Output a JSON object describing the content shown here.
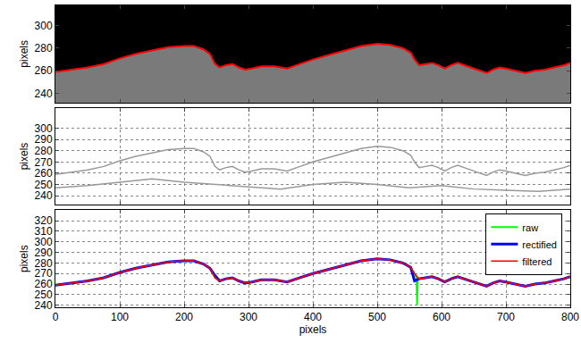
{
  "chart_data": [
    {
      "type": "line",
      "ylabel": "pixels",
      "xlim": [
        0,
        800
      ],
      "xticks": [
        0,
        100,
        200,
        300,
        400,
        500,
        600,
        700,
        800
      ],
      "ylim": [
        232,
        318
      ],
      "yticks": [
        240,
        260,
        280,
        300
      ],
      "grid": false,
      "tick_labels": "y",
      "series": [
        {
          "color": "#ff0000",
          "x": [
            0,
            25,
            50,
            75,
            100,
            125,
            150,
            175,
            200,
            215,
            230,
            240,
            248,
            255,
            265,
            275,
            285,
            295,
            305,
            320,
            340,
            360,
            380,
            400,
            425,
            450,
            475,
            500,
            520,
            540,
            552,
            558,
            565,
            575,
            585,
            595,
            605,
            615,
            625,
            640,
            650,
            660,
            670,
            680,
            690,
            700,
            715,
            730,
            745,
            760,
            775,
            790,
            800
          ],
          "values": [
            259,
            261,
            263,
            266,
            271,
            275,
            278,
            281,
            282,
            282,
            279,
            275,
            266,
            263,
            265,
            266,
            263,
            261,
            262,
            264,
            264,
            262,
            266,
            270,
            274,
            278,
            282,
            284,
            283,
            280,
            276,
            270,
            265,
            266,
            267,
            265,
            262,
            265,
            267,
            264,
            262,
            260,
            258,
            261,
            263,
            262,
            260,
            258,
            260,
            261,
            263,
            265,
            267
          ]
        }
      ]
    },
    {
      "type": "line",
      "ylabel": "pixels",
      "xlim": [
        0,
        800
      ],
      "xticks": [
        0,
        100,
        200,
        300,
        400,
        500,
        600,
        700,
        800
      ],
      "ylim": [
        232,
        318
      ],
      "yticks": [
        240,
        250,
        260,
        270,
        280,
        290,
        300
      ],
      "grid": true,
      "tick_labels": "y",
      "series": [
        {
          "color": "#999999",
          "x": [
            0,
            25,
            50,
            75,
            100,
            125,
            150,
            175,
            200,
            215,
            230,
            240,
            248,
            255,
            265,
            275,
            285,
            295,
            305,
            320,
            340,
            360,
            380,
            400,
            425,
            450,
            475,
            500,
            520,
            540,
            552,
            558,
            565,
            575,
            585,
            595,
            605,
            615,
            625,
            640,
            650,
            660,
            670,
            680,
            690,
            700,
            715,
            730,
            745,
            760,
            775,
            790,
            800
          ],
          "values": [
            259,
            261,
            263,
            266,
            271,
            275,
            278,
            281,
            282,
            282,
            279,
            275,
            266,
            263,
            265,
            266,
            263,
            261,
            262,
            264,
            264,
            262,
            266,
            270,
            274,
            278,
            282,
            284,
            283,
            280,
            276,
            270,
            265,
            266,
            267,
            265,
            262,
            265,
            267,
            264,
            262,
            260,
            258,
            261,
            263,
            262,
            260,
            258,
            260,
            261,
            263,
            265,
            267
          ]
        },
        {
          "color": "#999999",
          "x": [
            0,
            50,
            100,
            150,
            200,
            250,
            300,
            350,
            400,
            450,
            500,
            550,
            600,
            650,
            700,
            750,
            800
          ],
          "values": [
            247,
            249,
            252,
            255,
            252,
            250,
            248,
            246,
            250,
            252,
            250,
            247,
            249,
            246,
            245,
            244,
            246
          ]
        }
      ]
    },
    {
      "type": "line",
      "xlabel": "pixels",
      "ylabel": "pixels",
      "xlim": [
        0,
        800
      ],
      "xticks": [
        0,
        100,
        200,
        300,
        400,
        500,
        600,
        700,
        800
      ],
      "ylim": [
        238,
        330
      ],
      "yticks": [
        240,
        250,
        260,
        270,
        280,
        290,
        300,
        310,
        320
      ],
      "grid": true,
      "legend": "top right",
      "series": [
        {
          "name": "raw",
          "color": "#00ff00",
          "x": [
            0,
            25,
            50,
            75,
            100,
            125,
            150,
            175,
            200,
            215,
            230,
            240,
            248,
            255,
            265,
            275,
            285,
            295,
            305,
            320,
            340,
            360,
            380,
            400,
            425,
            450,
            475,
            500,
            520,
            540,
            552,
            558,
            561,
            562,
            563,
            565,
            575,
            585,
            595,
            605,
            615,
            625,
            640,
            650,
            660,
            670,
            680,
            690,
            700,
            715,
            730,
            745,
            760,
            775,
            790,
            800
          ],
          "values": [
            259,
            261,
            263,
            266,
            271,
            275,
            278,
            281,
            282,
            282,
            279,
            275,
            266,
            263,
            265,
            266,
            263,
            261,
            262,
            264,
            264,
            262,
            266,
            270,
            274,
            278,
            282,
            284,
            283,
            280,
            276,
            270,
            266,
            240,
            266,
            265,
            266,
            267,
            265,
            262,
            265,
            267,
            264,
            262,
            260,
            258,
            261,
            263,
            262,
            260,
            258,
            260,
            261,
            263,
            265,
            267
          ]
        },
        {
          "name": "rectified",
          "color": "#0000ff",
          "x": [
            0,
            25,
            50,
            75,
            100,
            125,
            150,
            175,
            200,
            215,
            230,
            240,
            248,
            255,
            265,
            275,
            285,
            295,
            305,
            320,
            340,
            360,
            380,
            400,
            425,
            450,
            475,
            500,
            520,
            540,
            552,
            558,
            565,
            575,
            585,
            595,
            605,
            615,
            625,
            640,
            650,
            660,
            670,
            680,
            690,
            700,
            715,
            730,
            745,
            760,
            775,
            790,
            800
          ],
          "values": [
            259,
            261,
            263,
            266,
            271,
            275,
            278,
            281,
            282,
            282,
            279,
            275,
            268,
            263,
            265,
            266,
            263,
            261,
            262,
            264,
            264,
            262,
            266,
            270,
            274,
            278,
            282,
            284,
            283,
            280,
            276,
            263,
            265,
            266,
            267,
            265,
            262,
            265,
            267,
            264,
            262,
            260,
            258,
            261,
            263,
            262,
            260,
            258,
            260,
            261,
            263,
            265,
            267
          ]
        },
        {
          "name": "filtered",
          "color": "#ff0000",
          "x": [
            0,
            25,
            50,
            75,
            100,
            125,
            150,
            175,
            200,
            215,
            230,
            240,
            248,
            255,
            265,
            275,
            285,
            295,
            305,
            320,
            340,
            360,
            380,
            400,
            425,
            450,
            475,
            500,
            520,
            540,
            552,
            558,
            565,
            575,
            585,
            595,
            605,
            615,
            625,
            640,
            650,
            660,
            670,
            680,
            690,
            700,
            715,
            730,
            745,
            760,
            775,
            790,
            800
          ],
          "values": [
            259,
            261,
            263,
            266,
            271,
            275,
            278,
            281,
            282,
            282,
            279,
            275,
            266,
            263,
            265,
            266,
            263,
            261,
            262,
            264,
            264,
            262,
            266,
            270,
            274,
            278,
            282,
            284,
            283,
            280,
            276,
            270,
            265,
            266,
            267,
            265,
            262,
            265,
            267,
            264,
            262,
            260,
            258,
            261,
            263,
            262,
            260,
            258,
            260,
            261,
            263,
            265,
            267
          ]
        }
      ]
    }
  ]
}
